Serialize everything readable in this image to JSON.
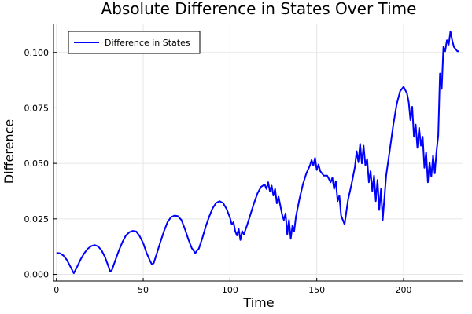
{
  "chart_data": {
    "type": "line",
    "title": "Absolute Difference in States Over Time",
    "xlabel": "Time",
    "ylabel": "Difference",
    "xlim": [
      -1.7,
      234
    ],
    "ylim": [
      -0.003,
      0.113
    ],
    "x_ticks": [
      0,
      50,
      100,
      150,
      200
    ],
    "x_tick_labels": [
      "0",
      "50",
      "100",
      "150",
      "200"
    ],
    "y_ticks": [
      0.0,
      0.025,
      0.05,
      0.075,
      0.1
    ],
    "y_tick_labels": [
      "0.000",
      "0.025",
      "0.050",
      "0.075",
      "0.100"
    ],
    "grid": true,
    "legend_position": "top-left",
    "colors": {
      "line": "#0000ff",
      "axis": "#000000",
      "grid": "#e6e6e6"
    },
    "series": [
      {
        "name": "Difference in States",
        "x": [
          0,
          2,
          4,
          6,
          8,
          10,
          12,
          14,
          16,
          18,
          20,
          22,
          24,
          26,
          28,
          30,
          31,
          32,
          34,
          36,
          38,
          40,
          42,
          44,
          46,
          48,
          50,
          52,
          54,
          55,
          56,
          58,
          60,
          62,
          64,
          66,
          68,
          70,
          72,
          74,
          76,
          78,
          79,
          80,
          81,
          82,
          84,
          86,
          88,
          90,
          92,
          94,
          96,
          98,
          100,
          101,
          102,
          103,
          104,
          105,
          106,
          107,
          108,
          110,
          112,
          114,
          116,
          118,
          120,
          121,
          122,
          123,
          124,
          125,
          126,
          127,
          128,
          130,
          131,
          132,
          133,
          134,
          135,
          136,
          137,
          138,
          140,
          142,
          144,
          146,
          147,
          148,
          149,
          150,
          151,
          152,
          154,
          156,
          158,
          159,
          160,
          161,
          162,
          163,
          164,
          166,
          168,
          170,
          172,
          173,
          174,
          175,
          176,
          177,
          178,
          179,
          180,
          181,
          182,
          183,
          184,
          185,
          186,
          187,
          188,
          190,
          192,
          194,
          196,
          198,
          200,
          202,
          203,
          204,
          205,
          206,
          207,
          208,
          209,
          210,
          211,
          212,
          213,
          214,
          215,
          216,
          217,
          218,
          219,
          220,
          221,
          222,
          223,
          224,
          225,
          226,
          227,
          228,
          229,
          230,
          231,
          232
        ],
        "values": [
          0.0097,
          0.0095,
          0.0085,
          0.0065,
          0.0035,
          0.0005,
          0.0035,
          0.0068,
          0.0095,
          0.0115,
          0.0127,
          0.0132,
          0.0126,
          0.0108,
          0.0078,
          0.0035,
          0.0012,
          0.002,
          0.0065,
          0.0108,
          0.0145,
          0.0175,
          0.019,
          0.0196,
          0.0193,
          0.0172,
          0.014,
          0.0095,
          0.006,
          0.0045,
          0.005,
          0.0098,
          0.0148,
          0.0195,
          0.0235,
          0.0258,
          0.0265,
          0.0262,
          0.0245,
          0.0205,
          0.0158,
          0.0118,
          0.0108,
          0.0095,
          0.0108,
          0.0115,
          0.0162,
          0.0215,
          0.026,
          0.0298,
          0.0322,
          0.033,
          0.0322,
          0.0295,
          0.0255,
          0.0225,
          0.0235,
          0.0195,
          0.0175,
          0.0205,
          0.0155,
          0.0195,
          0.018,
          0.0225,
          0.0275,
          0.0325,
          0.0368,
          0.0395,
          0.0405,
          0.0385,
          0.0415,
          0.0375,
          0.04,
          0.0355,
          0.0385,
          0.032,
          0.035,
          0.027,
          0.0245,
          0.0275,
          0.018,
          0.0245,
          0.016,
          0.022,
          0.0195,
          0.026,
          0.0338,
          0.0405,
          0.0455,
          0.049,
          0.0515,
          0.049,
          0.0525,
          0.047,
          0.0495,
          0.0465,
          0.0445,
          0.0445,
          0.0415,
          0.0435,
          0.0385,
          0.042,
          0.033,
          0.0355,
          0.0265,
          0.0225,
          0.0335,
          0.0405,
          0.0485,
          0.0555,
          0.0505,
          0.0588,
          0.05,
          0.058,
          0.049,
          0.052,
          0.0415,
          0.0465,
          0.0375,
          0.0445,
          0.033,
          0.0425,
          0.029,
          0.0385,
          0.0245,
          0.0445,
          0.0555,
          0.067,
          0.0765,
          0.0825,
          0.0845,
          0.0815,
          0.0775,
          0.0695,
          0.0755,
          0.062,
          0.0675,
          0.057,
          0.066,
          0.058,
          0.062,
          0.048,
          0.055,
          0.0415,
          0.0505,
          0.044,
          0.0535,
          0.0455,
          0.0555,
          0.0625,
          0.0905,
          0.0835,
          0.1025,
          0.1005,
          0.1055,
          0.1035,
          0.1095,
          0.1055,
          0.1025,
          0.1015,
          0.1005,
          0.1005
        ]
      }
    ]
  }
}
